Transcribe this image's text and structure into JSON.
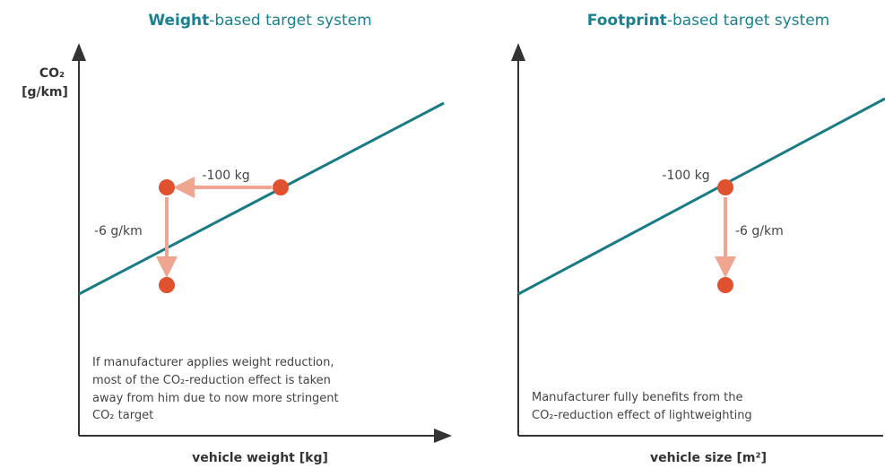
{
  "panels": [
    {
      "title": {
        "bold": "Weight",
        "rest": "-based target system"
      },
      "y_axis_label": [
        "CO₂",
        "[g/km]"
      ],
      "x_axis_label": "vehicle weight [kg]",
      "annotations": [
        "-100 kg",
        "-6 g/km"
      ],
      "note": [
        "If manufacturer applies weight reduction,",
        "most of the CO₂-reduction effect is taken",
        "away from him due to now more stringent",
        "CO₂ target"
      ]
    },
    {
      "title": {
        "bold": "Footprint",
        "rest": "-based target system"
      },
      "x_axis_label": "vehicle size [m²]",
      "annotations": [
        "-100 kg",
        "-6 g/km"
      ],
      "note": [
        "Manufacturer fully benefits from the",
        "CO₂-reduction effect of lightweighting"
      ]
    }
  ]
}
